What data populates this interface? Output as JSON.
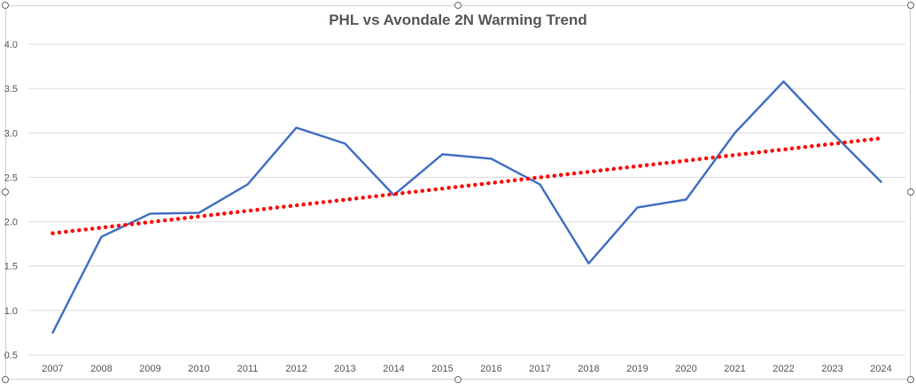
{
  "chart_data": {
    "type": "line",
    "title": "PHL vs Avondale 2N Warming Trend",
    "xlabel": "",
    "ylabel": "",
    "categories": [
      "2007",
      "2008",
      "2009",
      "2010",
      "2011",
      "2012",
      "2013",
      "2014",
      "2015",
      "2016",
      "2017",
      "2018",
      "2019",
      "2020",
      "2021",
      "2022",
      "2023",
      "2024"
    ],
    "series": [
      {
        "values": [
          0.75,
          1.83,
          2.09,
          2.1,
          2.42,
          3.06,
          2.88,
          2.3,
          2.76,
          2.71,
          2.42,
          1.53,
          2.16,
          2.25,
          3.0,
          3.58,
          3.0,
          2.45
        ],
        "color": "#4472c4",
        "style": "solid"
      }
    ],
    "trendline": {
      "type": "linear",
      "start": 1.87,
      "end": 2.94,
      "color": "#ff0000",
      "style": "dotted"
    },
    "yticks": [
      "0.5",
      "1.0",
      "1.5",
      "2.0",
      "2.5",
      "3.0",
      "3.5",
      "4.0"
    ],
    "ylim": [
      0.5,
      4.0
    ],
    "grid": "horizontal",
    "legend": "none"
  }
}
